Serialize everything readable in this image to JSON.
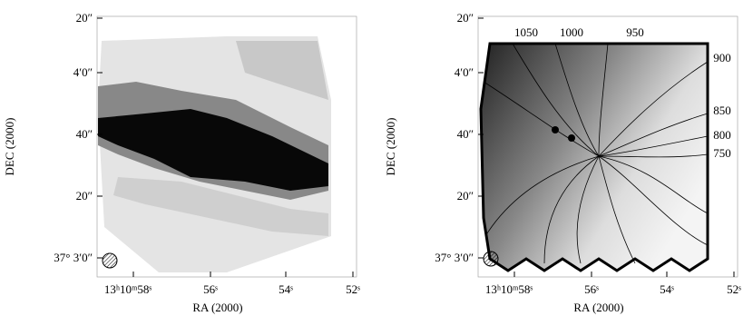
{
  "panels": [
    {
      "yticks": [
        "20″",
        "4′0″",
        "40″",
        "20″",
        "37° 3′0″"
      ],
      "xticks": [
        "13ʰ10ᵐ58ˢ",
        "56ˢ",
        "54ˢ",
        "52ˢ"
      ],
      "xlabel": "RA (2000)",
      "ylabel": "DEC (2000)"
    },
    {
      "yticks": [
        "20″",
        "4′0″",
        "40″",
        "20″",
        "37° 3′0″"
      ],
      "xticks": [
        "13ʰ10ᵐ58ˢ",
        "56ˢ",
        "54ˢ",
        "52ˢ"
      ],
      "xlabel": "RA (2000)",
      "ylabel": "DEC (2000)",
      "contour_labels": [
        "1050",
        "1000",
        "950",
        "900",
        "850",
        "800",
        "750"
      ]
    }
  ]
}
